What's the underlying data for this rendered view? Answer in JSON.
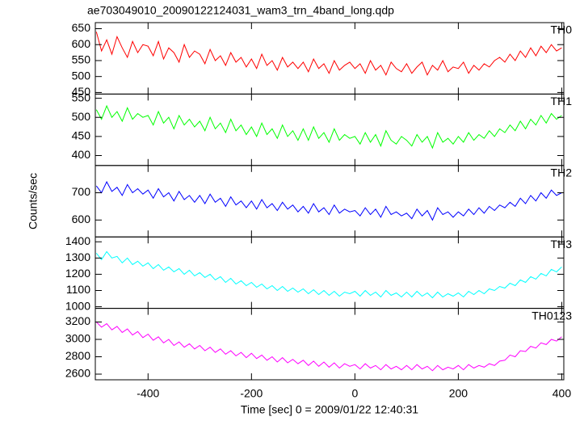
{
  "chart_data": [
    {
      "type": "line",
      "title": "ae703049010_20090122124031_wam3_trn_4band_long.qdp",
      "x": [
        -500,
        -490,
        -480,
        -470,
        -460,
        -450,
        -440,
        -430,
        -420,
        -410,
        -400,
        -390,
        -380,
        -370,
        -360,
        -350,
        -340,
        -330,
        -320,
        -310,
        -300,
        -290,
        -280,
        -270,
        -260,
        -250,
        -240,
        -230,
        -220,
        -210,
        -200,
        -190,
        -180,
        -170,
        -160,
        -150,
        -140,
        -130,
        -120,
        -110,
        -100,
        -90,
        -80,
        -70,
        -60,
        -50,
        -40,
        -30,
        -20,
        -10,
        0,
        10,
        20,
        30,
        40,
        50,
        60,
        70,
        80,
        90,
        100,
        110,
        120,
        130,
        140,
        150,
        160,
        170,
        180,
        190,
        200,
        210,
        220,
        230,
        240,
        250,
        260,
        270,
        280,
        290,
        300,
        310,
        320,
        330,
        340,
        350,
        360,
        370,
        380,
        390,
        400
      ],
      "xlim": [
        -502,
        404
      ],
      "xticks": [
        -400,
        -200,
        0,
        200,
        400
      ],
      "ylim": [
        445,
        669
      ],
      "yticks": [
        450,
        500,
        550,
        600,
        650
      ],
      "series": [
        {
          "name": "TH0",
          "color": "#ff0000",
          "values": [
            640,
            580,
            615,
            570,
            625,
            590,
            560,
            610,
            575,
            600,
            595,
            565,
            610,
            555,
            590,
            575,
            545,
            600,
            560,
            580,
            570,
            540,
            585,
            550,
            565,
            535,
            575,
            545,
            560,
            530,
            555,
            525,
            570,
            535,
            550,
            520,
            560,
            530,
            545,
            525,
            545,
            515,
            555,
            525,
            540,
            510,
            550,
            520,
            535,
            545,
            525,
            540,
            510,
            550,
            520,
            535,
            505,
            545,
            525,
            515,
            540,
            510,
            530,
            545,
            505,
            535,
            520,
            550,
            515,
            530,
            525,
            545,
            510,
            535,
            520,
            540,
            530,
            550,
            560,
            545,
            570,
            550,
            580,
            560,
            590,
            565,
            595,
            575,
            600,
            580,
            590
          ]
        }
      ]
    },
    {
      "type": "line",
      "x": [
        -500,
        -490,
        -480,
        -470,
        -460,
        -450,
        -440,
        -430,
        -420,
        -410,
        -400,
        -390,
        -380,
        -370,
        -360,
        -350,
        -340,
        -330,
        -320,
        -310,
        -300,
        -290,
        -280,
        -270,
        -260,
        -250,
        -240,
        -230,
        -220,
        -210,
        -200,
        -190,
        -180,
        -170,
        -160,
        -150,
        -140,
        -130,
        -120,
        -110,
        -100,
        -90,
        -80,
        -70,
        -60,
        -50,
        -40,
        -30,
        -20,
        -10,
        0,
        10,
        20,
        30,
        40,
        50,
        60,
        70,
        80,
        90,
        100,
        110,
        120,
        130,
        140,
        150,
        160,
        170,
        180,
        190,
        200,
        210,
        220,
        230,
        240,
        250,
        260,
        270,
        280,
        290,
        300,
        310,
        320,
        330,
        340,
        350,
        360,
        370,
        380,
        390,
        400
      ],
      "xlim": [
        -502,
        404
      ],
      "xticks": [
        -400,
        -200,
        0,
        200,
        400
      ],
      "ylim": [
        374,
        561
      ],
      "yticks": [
        400,
        450,
        500,
        550
      ],
      "series": [
        {
          "name": "TH1",
          "color": "#00ff00",
          "values": [
            520,
            495,
            530,
            500,
            515,
            490,
            525,
            495,
            510,
            500,
            505,
            480,
            515,
            485,
            500,
            470,
            505,
            480,
            495,
            475,
            490,
            465,
            500,
            470,
            485,
            460,
            495,
            465,
            480,
            455,
            475,
            450,
            485,
            455,
            470,
            445,
            480,
            450,
            465,
            440,
            470,
            440,
            475,
            445,
            460,
            435,
            470,
            440,
            455,
            445,
            450,
            430,
            460,
            435,
            455,
            425,
            465,
            440,
            430,
            450,
            440,
            425,
            455,
            435,
            450,
            420,
            460,
            435,
            445,
            430,
            450,
            435,
            460,
            440,
            455,
            445,
            465,
            450,
            470,
            460,
            480,
            465,
            490,
            470,
            495,
            480,
            505,
            485,
            510,
            495,
            505
          ]
        }
      ]
    },
    {
      "type": "line",
      "y_label": "Counts/sec",
      "x": [
        -500,
        -490,
        -480,
        -470,
        -460,
        -450,
        -440,
        -430,
        -420,
        -410,
        -400,
        -390,
        -380,
        -370,
        -360,
        -350,
        -340,
        -330,
        -320,
        -310,
        -300,
        -290,
        -280,
        -270,
        -260,
        -250,
        -240,
        -230,
        -220,
        -210,
        -200,
        -190,
        -180,
        -170,
        -160,
        -150,
        -140,
        -130,
        -120,
        -110,
        -100,
        -90,
        -80,
        -70,
        -60,
        -50,
        -40,
        -30,
        -20,
        -10,
        0,
        10,
        20,
        30,
        40,
        50,
        60,
        70,
        80,
        90,
        100,
        110,
        120,
        130,
        140,
        150,
        160,
        170,
        180,
        190,
        200,
        210,
        220,
        230,
        240,
        250,
        260,
        270,
        280,
        290,
        300,
        310,
        320,
        330,
        340,
        350,
        360,
        370,
        380,
        390,
        400
      ],
      "xlim": [
        -502,
        404
      ],
      "xticks": [
        -400,
        -200,
        0,
        200,
        400
      ],
      "ylim": [
        538,
        800
      ],
      "yticks": [
        600,
        700
      ],
      "series": [
        {
          "name": "TH2",
          "color": "#0000ff",
          "values": [
            725,
            700,
            740,
            705,
            720,
            690,
            730,
            700,
            715,
            695,
            710,
            680,
            715,
            685,
            700,
            670,
            705,
            675,
            690,
            665,
            690,
            660,
            695,
            665,
            680,
            650,
            685,
            655,
            670,
            645,
            670,
            640,
            675,
            645,
            660,
            635,
            665,
            640,
            655,
            630,
            650,
            625,
            660,
            630,
            645,
            620,
            655,
            625,
            640,
            630,
            635,
            615,
            645,
            620,
            640,
            610,
            650,
            620,
            630,
            615,
            625,
            605,
            640,
            615,
            635,
            600,
            645,
            620,
            630,
            610,
            630,
            615,
            640,
            620,
            645,
            625,
            650,
            635,
            655,
            645,
            665,
            650,
            680,
            660,
            690,
            670,
            700,
            680,
            710,
            690,
            700
          ]
        }
      ]
    },
    {
      "type": "line",
      "x": [
        -500,
        -490,
        -480,
        -470,
        -460,
        -450,
        -440,
        -430,
        -420,
        -410,
        -400,
        -390,
        -380,
        -370,
        -360,
        -350,
        -340,
        -330,
        -320,
        -310,
        -300,
        -290,
        -280,
        -270,
        -260,
        -250,
        -240,
        -230,
        -220,
        -210,
        -200,
        -190,
        -180,
        -170,
        -160,
        -150,
        -140,
        -130,
        -120,
        -110,
        -100,
        -90,
        -80,
        -70,
        -60,
        -50,
        -40,
        -30,
        -20,
        -10,
        0,
        10,
        20,
        30,
        40,
        50,
        60,
        70,
        80,
        90,
        100,
        110,
        120,
        130,
        140,
        150,
        160,
        170,
        180,
        190,
        200,
        210,
        220,
        230,
        240,
        250,
        260,
        270,
        280,
        290,
        300,
        310,
        320,
        330,
        340,
        350,
        360,
        370,
        380,
        390,
        400
      ],
      "xlim": [
        -502,
        404
      ],
      "xticks": [
        -400,
        -200,
        0,
        200,
        400
      ],
      "ylim": [
        990,
        1430
      ],
      "yticks": [
        1000,
        1100,
        1200,
        1300,
        1400
      ],
      "series": [
        {
          "name": "TH3",
          "color": "#00ffff",
          "values": [
            1330,
            1290,
            1340,
            1300,
            1310,
            1270,
            1300,
            1260,
            1280,
            1250,
            1270,
            1235,
            1260,
            1225,
            1245,
            1215,
            1235,
            1200,
            1225,
            1190,
            1210,
            1180,
            1200,
            1165,
            1185,
            1150,
            1175,
            1140,
            1160,
            1130,
            1150,
            1120,
            1140,
            1110,
            1130,
            1100,
            1125,
            1095,
            1115,
            1090,
            1110,
            1080,
            1105,
            1075,
            1100,
            1070,
            1095,
            1065,
            1090,
            1080,
            1095,
            1065,
            1100,
            1070,
            1090,
            1060,
            1100,
            1070,
            1085,
            1060,
            1090,
            1060,
            1095,
            1065,
            1085,
            1055,
            1090,
            1060,
            1080,
            1065,
            1085,
            1060,
            1095,
            1075,
            1100,
            1080,
            1110,
            1100,
            1125,
            1115,
            1145,
            1130,
            1165,
            1150,
            1185,
            1170,
            1205,
            1190,
            1230,
            1215,
            1245
          ]
        }
      ]
    },
    {
      "type": "line",
      "x_label": "Time [sec] 0 = 2009/01/22 12:40:31",
      "x": [
        -500,
        -490,
        -480,
        -470,
        -460,
        -450,
        -440,
        -430,
        -420,
        -410,
        -400,
        -390,
        -380,
        -370,
        -360,
        -350,
        -340,
        -330,
        -320,
        -310,
        -300,
        -290,
        -280,
        -270,
        -260,
        -250,
        -240,
        -230,
        -220,
        -210,
        -200,
        -190,
        -180,
        -170,
        -160,
        -150,
        -140,
        -130,
        -120,
        -110,
        -100,
        -90,
        -80,
        -70,
        -60,
        -50,
        -40,
        -30,
        -20,
        -10,
        0,
        10,
        20,
        30,
        40,
        50,
        60,
        70,
        80,
        90,
        100,
        110,
        120,
        130,
        140,
        150,
        160,
        170,
        180,
        190,
        200,
        210,
        220,
        230,
        240,
        250,
        260,
        270,
        280,
        290,
        300,
        310,
        320,
        330,
        340,
        350,
        360,
        370,
        380,
        390,
        400
      ],
      "xlim": [
        -502,
        404
      ],
      "xticks": [
        -400,
        -200,
        0,
        200,
        400
      ],
      "ylim": [
        2535,
        3357
      ],
      "yticks": [
        2600,
        2800,
        3000,
        3200
      ],
      "series": [
        {
          "name": "TH0123",
          "color": "#ff00ff",
          "values": [
            3200,
            3140,
            3180,
            3110,
            3150,
            3080,
            3120,
            3050,
            3090,
            3020,
            3060,
            2990,
            3030,
            2960,
            3000,
            2930,
            2970,
            2910,
            2950,
            2890,
            2930,
            2870,
            2910,
            2850,
            2890,
            2830,
            2870,
            2810,
            2850,
            2790,
            2840,
            2780,
            2820,
            2760,
            2800,
            2740,
            2790,
            2730,
            2770,
            2720,
            2760,
            2700,
            2750,
            2690,
            2740,
            2680,
            2730,
            2670,
            2720,
            2690,
            2710,
            2660,
            2720,
            2670,
            2700,
            2650,
            2710,
            2660,
            2690,
            2650,
            2700,
            2650,
            2710,
            2660,
            2690,
            2640,
            2700,
            2650,
            2680,
            2660,
            2700,
            2650,
            2710,
            2670,
            2700,
            2680,
            2720,
            2700,
            2750,
            2760,
            2820,
            2800,
            2870,
            2860,
            2920,
            2900,
            2960,
            2940,
            3000,
            2980,
            3030
          ]
        }
      ]
    }
  ]
}
